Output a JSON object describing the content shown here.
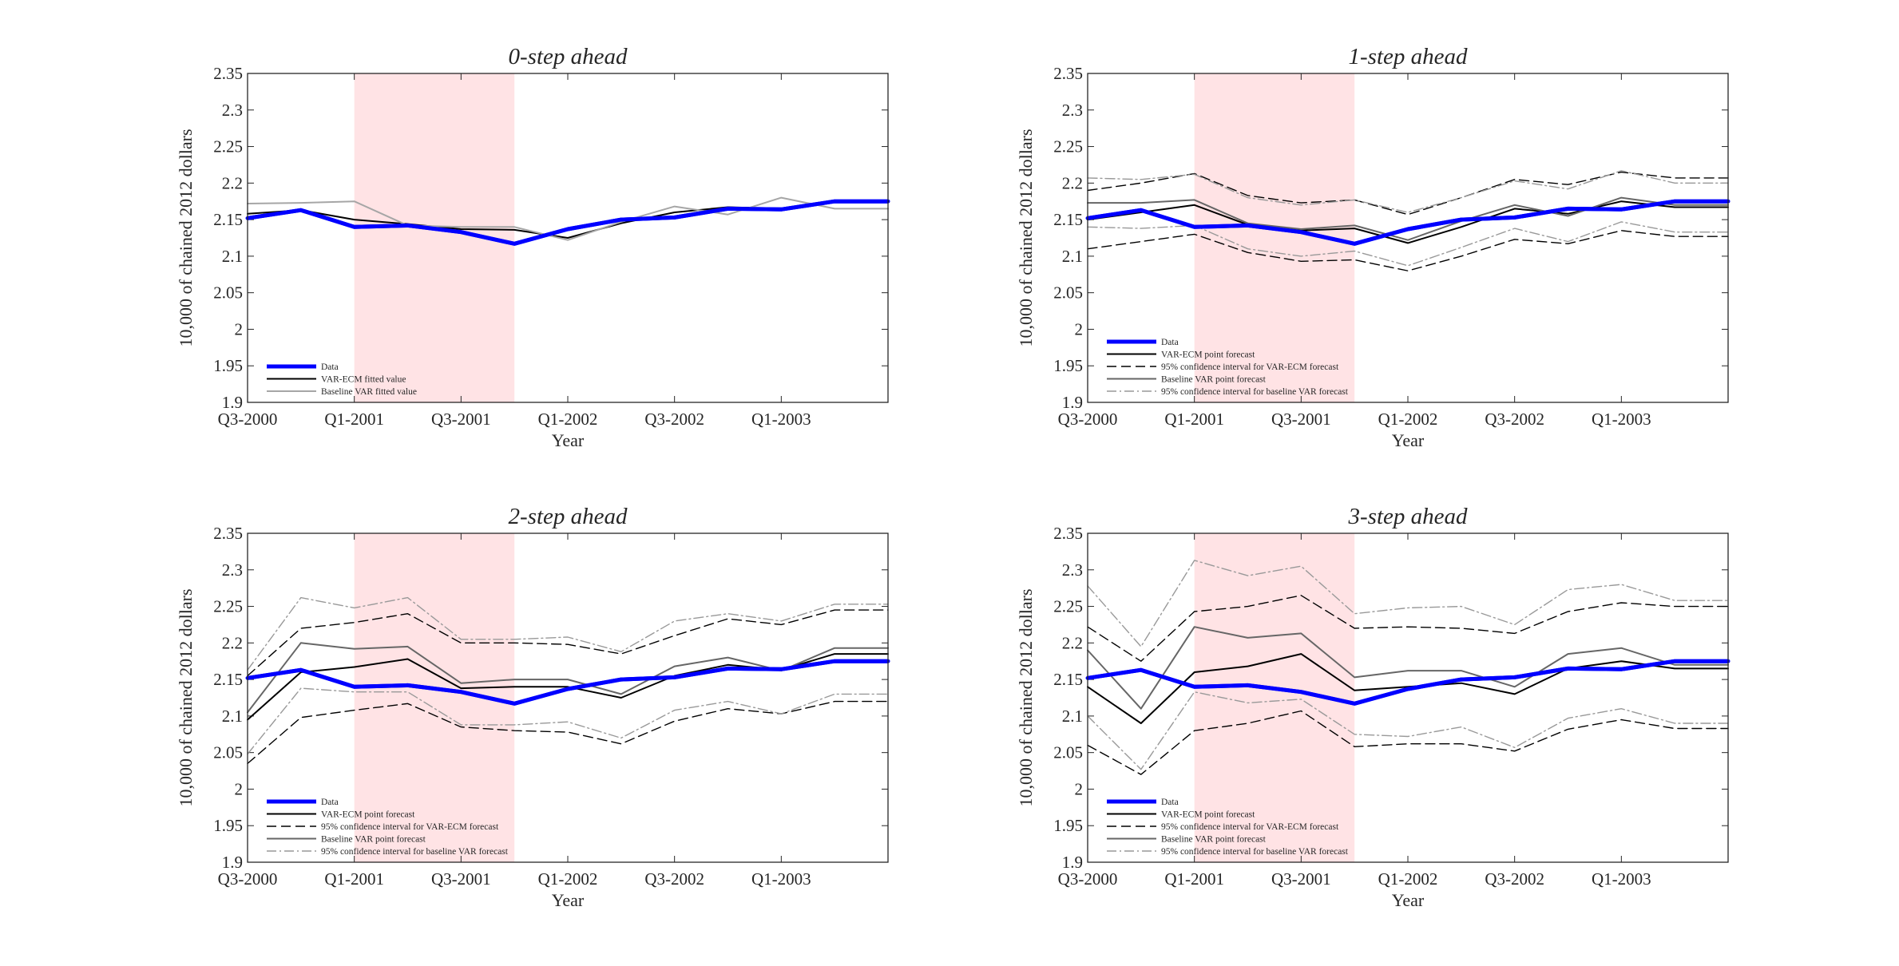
{
  "figure": {
    "colors": {
      "data": "#0000ff",
      "var_ecm_point": "#000000",
      "var_ecm_ci": "#000000",
      "baseline_point": "#666666",
      "baseline_ci": "#999999",
      "baseline_fitted": "#a6a6a6",
      "recession_shade": "#ffe3e5",
      "axes": "#262626"
    }
  },
  "chart_data": [
    {
      "type": "line",
      "title": "0-step ahead",
      "xlabel": "Year",
      "ylabel": "10,000 of chained 2012 dollars",
      "x_tick_labels": [
        "Q3-2000",
        "Q1-2001",
        "Q3-2001",
        "Q1-2002",
        "Q3-2002",
        "Q1-2003"
      ],
      "y_ticks": [
        "1.9",
        "1.95",
        "2",
        "2.05",
        "2.1",
        "2.15",
        "2.2",
        "2.25",
        "2.3",
        "2.35"
      ],
      "ylim": [
        1.9,
        2.35
      ],
      "xlim": [
        "Q3-2000",
        "Q3-2003"
      ],
      "x": [
        "Q3-2000",
        "Q4-2000",
        "Q1-2001",
        "Q2-2001",
        "Q3-2001",
        "Q4-2001",
        "Q1-2002",
        "Q2-2002",
        "Q3-2002",
        "Q4-2002",
        "Q1-2003",
        "Q2-2003",
        "Q3-2003"
      ],
      "shaded_region": [
        "Q1-2001",
        "Q4-2001"
      ],
      "legend_position": "bottom-left",
      "series": [
        {
          "name": "Data",
          "style": "data",
          "values": [
            2.152,
            2.163,
            2.14,
            2.142,
            2.133,
            2.117,
            2.137,
            2.15,
            2.153,
            2.165,
            2.164,
            2.175,
            2.175
          ]
        },
        {
          "name": "VAR-ECM fitted value",
          "style": "var_ecm_point",
          "values": [
            2.158,
            2.163,
            2.15,
            2.144,
            2.137,
            2.136,
            2.125,
            2.145,
            2.16,
            2.167,
            2.165,
            2.175,
            2.175
          ]
        },
        {
          "name": "Baseline VAR fitted value",
          "style": "baseline_fitted",
          "values": [
            2.172,
            2.173,
            2.175,
            2.142,
            2.14,
            2.14,
            2.122,
            2.147,
            2.168,
            2.157,
            2.18,
            2.165,
            2.165
          ]
        }
      ]
    },
    {
      "type": "line",
      "title": "1-step ahead",
      "xlabel": "Year",
      "ylabel": "10,000 of chained 2012 dollars",
      "x_tick_labels": [
        "Q3-2000",
        "Q1-2001",
        "Q3-2001",
        "Q1-2002",
        "Q3-2002",
        "Q1-2003"
      ],
      "y_ticks": [
        "1.9",
        "1.95",
        "2",
        "2.05",
        "2.1",
        "2.15",
        "2.2",
        "2.25",
        "2.3",
        "2.35"
      ],
      "ylim": [
        1.9,
        2.35
      ],
      "xlim": [
        "Q3-2000",
        "Q3-2003"
      ],
      "x": [
        "Q3-2000",
        "Q4-2000",
        "Q1-2001",
        "Q2-2001",
        "Q3-2001",
        "Q4-2001",
        "Q1-2002",
        "Q2-2002",
        "Q3-2002",
        "Q4-2002",
        "Q1-2003",
        "Q2-2003",
        "Q3-2003"
      ],
      "shaded_region": [
        "Q1-2001",
        "Q4-2001"
      ],
      "legend_position": "bottom-left",
      "series": [
        {
          "name": "Data",
          "style": "data",
          "values": [
            2.152,
            2.163,
            2.14,
            2.142,
            2.133,
            2.117,
            2.137,
            2.15,
            2.153,
            2.165,
            2.164,
            2.175,
            2.175
          ]
        },
        {
          "name": "VAR-ECM point forecast",
          "style": "var_ecm_point",
          "values": [
            2.15,
            2.16,
            2.17,
            2.143,
            2.135,
            2.138,
            2.118,
            2.14,
            2.165,
            2.158,
            2.175,
            2.167,
            2.167
          ]
        },
        {
          "name": "95% confidence interval for VAR-ECM forecast",
          "style": "var_ecm_ci",
          "values": [
            2.19,
            2.2,
            2.213,
            2.183,
            2.173,
            2.177,
            2.157,
            2.18,
            2.205,
            2.198,
            2.215,
            2.207,
            2.207
          ]
        },
        {
          "name": "",
          "style": "var_ecm_ci",
          "values": [
            2.11,
            2.12,
            2.13,
            2.105,
            2.093,
            2.095,
            2.08,
            2.1,
            2.123,
            2.117,
            2.135,
            2.127,
            2.127
          ]
        },
        {
          "name": "Baseline VAR point forecast",
          "style": "baseline_point",
          "values": [
            2.173,
            2.173,
            2.177,
            2.145,
            2.137,
            2.142,
            2.122,
            2.148,
            2.17,
            2.155,
            2.18,
            2.17,
            2.17
          ]
        },
        {
          "name": "95% confidence interval for baseline VAR forecast",
          "style": "baseline_ci",
          "values": [
            2.207,
            2.205,
            2.212,
            2.18,
            2.17,
            2.177,
            2.16,
            2.18,
            2.203,
            2.192,
            2.217,
            2.2,
            2.2
          ]
        },
        {
          "name": "",
          "style": "baseline_ci",
          "values": [
            2.14,
            2.138,
            2.142,
            2.11,
            2.1,
            2.107,
            2.087,
            2.112,
            2.138,
            2.12,
            2.147,
            2.133,
            2.133
          ]
        }
      ]
    },
    {
      "type": "line",
      "title": "2-step ahead",
      "xlabel": "Year",
      "ylabel": "10,000 of chained 2012 dollars",
      "x_tick_labels": [
        "Q3-2000",
        "Q1-2001",
        "Q3-2001",
        "Q1-2002",
        "Q3-2002",
        "Q1-2003"
      ],
      "y_ticks": [
        "1.9",
        "1.95",
        "2",
        "2.05",
        "2.1",
        "2.15",
        "2.2",
        "2.25",
        "2.3",
        "2.35"
      ],
      "ylim": [
        1.9,
        2.35
      ],
      "xlim": [
        "Q3-2000",
        "Q3-2003"
      ],
      "x": [
        "Q3-2000",
        "Q4-2000",
        "Q1-2001",
        "Q2-2001",
        "Q3-2001",
        "Q4-2001",
        "Q1-2002",
        "Q2-2002",
        "Q3-2002",
        "Q4-2002",
        "Q1-2003",
        "Q2-2003",
        "Q3-2003"
      ],
      "shaded_region": [
        "Q1-2001",
        "Q4-2001"
      ],
      "legend_position": "bottom-left",
      "series": [
        {
          "name": "Data",
          "style": "data",
          "values": [
            2.152,
            2.163,
            2.14,
            2.142,
            2.133,
            2.117,
            2.137,
            2.15,
            2.153,
            2.165,
            2.164,
            2.175,
            2.175
          ]
        },
        {
          "name": "VAR-ECM point forecast",
          "style": "var_ecm_point",
          "values": [
            2.095,
            2.16,
            2.167,
            2.178,
            2.138,
            2.14,
            2.14,
            2.125,
            2.155,
            2.17,
            2.163,
            2.185,
            2.185
          ]
        },
        {
          "name": "95% confidence interval for VAR-ECM forecast",
          "style": "var_ecm_ci",
          "values": [
            2.155,
            2.22,
            2.228,
            2.24,
            2.2,
            2.2,
            2.198,
            2.185,
            2.21,
            2.233,
            2.225,
            2.245,
            2.245
          ]
        },
        {
          "name": "",
          "style": "var_ecm_ci",
          "values": [
            2.035,
            2.098,
            2.108,
            2.117,
            2.085,
            2.08,
            2.078,
            2.062,
            2.093,
            2.11,
            2.103,
            2.12,
            2.12
          ]
        },
        {
          "name": "Baseline VAR point forecast",
          "style": "baseline_point",
          "values": [
            2.105,
            2.2,
            2.192,
            2.195,
            2.145,
            2.15,
            2.15,
            2.13,
            2.168,
            2.18,
            2.162,
            2.193,
            2.193
          ]
        },
        {
          "name": "95% confidence interval for baseline VAR forecast",
          "style": "baseline_ci",
          "values": [
            2.163,
            2.262,
            2.248,
            2.262,
            2.205,
            2.205,
            2.208,
            2.188,
            2.23,
            2.24,
            2.23,
            2.253,
            2.253
          ]
        },
        {
          "name": "",
          "style": "baseline_ci",
          "values": [
            2.048,
            2.138,
            2.133,
            2.133,
            2.088,
            2.088,
            2.092,
            2.07,
            2.108,
            2.12,
            2.103,
            2.13,
            2.13
          ]
        }
      ]
    },
    {
      "type": "line",
      "title": "3-step ahead",
      "xlabel": "Year",
      "ylabel": "10,000 of chained 2012 dollars",
      "x_tick_labels": [
        "Q3-2000",
        "Q1-2001",
        "Q3-2001",
        "Q1-2002",
        "Q3-2002",
        "Q1-2003"
      ],
      "y_ticks": [
        "1.9",
        "1.95",
        "2",
        "2.05",
        "2.1",
        "2.15",
        "2.2",
        "2.25",
        "2.3",
        "2.35"
      ],
      "ylim": [
        1.9,
        2.35
      ],
      "xlim": [
        "Q3-2000",
        "Q3-2003"
      ],
      "x": [
        "Q3-2000",
        "Q4-2000",
        "Q1-2001",
        "Q2-2001",
        "Q3-2001",
        "Q4-2001",
        "Q1-2002",
        "Q2-2002",
        "Q3-2002",
        "Q4-2002",
        "Q1-2003",
        "Q2-2003",
        "Q3-2003"
      ],
      "shaded_region": [
        "Q1-2001",
        "Q4-2001"
      ],
      "legend_position": "bottom-left",
      "series": [
        {
          "name": "Data",
          "style": "data",
          "values": [
            2.152,
            2.163,
            2.14,
            2.142,
            2.133,
            2.117,
            2.137,
            2.15,
            2.153,
            2.165,
            2.164,
            2.175,
            2.175
          ]
        },
        {
          "name": "VAR-ECM point forecast",
          "style": "var_ecm_point",
          "values": [
            2.14,
            2.09,
            2.16,
            2.168,
            2.185,
            2.135,
            2.14,
            2.145,
            2.13,
            2.165,
            2.175,
            2.165,
            2.165
          ]
        },
        {
          "name": "95% confidence interval for VAR-ECM forecast",
          "style": "var_ecm_ci",
          "values": [
            2.222,
            2.175,
            2.243,
            2.25,
            2.265,
            2.22,
            2.222,
            2.22,
            2.213,
            2.243,
            2.255,
            2.25,
            2.25
          ]
        },
        {
          "name": "",
          "style": "var_ecm_ci",
          "values": [
            2.06,
            2.02,
            2.08,
            2.09,
            2.107,
            2.058,
            2.062,
            2.062,
            2.052,
            2.082,
            2.095,
            2.083,
            2.083
          ]
        },
        {
          "name": "Baseline VAR point forecast",
          "style": "baseline_point",
          "values": [
            2.19,
            2.11,
            2.222,
            2.207,
            2.213,
            2.153,
            2.162,
            2.162,
            2.14,
            2.185,
            2.193,
            2.17,
            2.17
          ]
        },
        {
          "name": "95% confidence interval for baseline VAR forecast",
          "style": "baseline_ci",
          "values": [
            2.278,
            2.195,
            2.313,
            2.292,
            2.305,
            2.24,
            2.248,
            2.25,
            2.225,
            2.273,
            2.28,
            2.258,
            2.258
          ]
        },
        {
          "name": "",
          "style": "baseline_ci",
          "values": [
            2.1,
            2.027,
            2.133,
            2.118,
            2.123,
            2.075,
            2.072,
            2.085,
            2.057,
            2.097,
            2.11,
            2.09,
            2.09
          ]
        }
      ]
    }
  ]
}
